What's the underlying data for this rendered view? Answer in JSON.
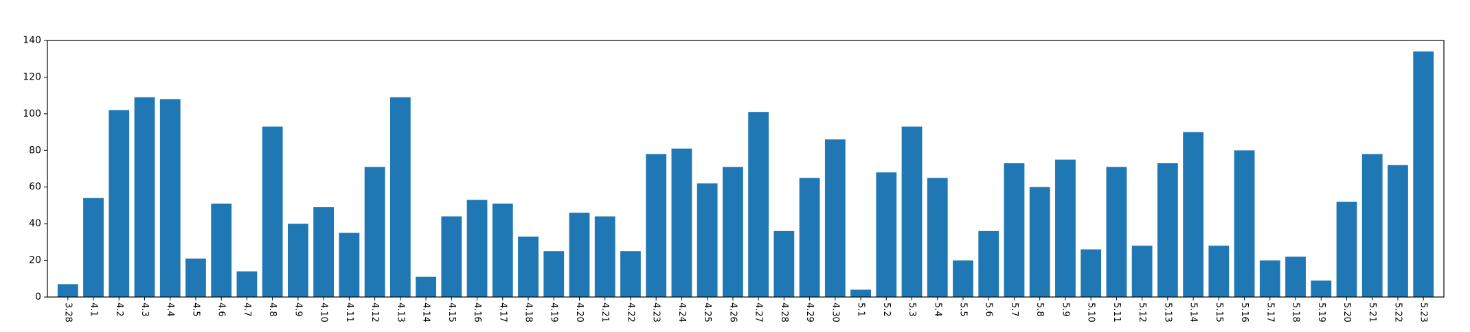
{
  "chart_data": {
    "type": "bar",
    "title": "",
    "xlabel": "",
    "ylabel": "",
    "categories": [
      "3.28",
      "4.1",
      "4.2",
      "4.3",
      "4.4",
      "4.5",
      "4.6",
      "4.7",
      "4.8",
      "4.9",
      "4.10",
      "4.11",
      "4.12",
      "4.13",
      "4.14",
      "4.15",
      "4.16",
      "4.17",
      "4.18",
      "4.19",
      "4.20",
      "4.21",
      "4.22",
      "4.23",
      "4.24",
      "4.25",
      "4.26",
      "4.27",
      "4.28",
      "4.29",
      "4.30",
      "5.1",
      "5.2",
      "5.3",
      "5.4",
      "5.5",
      "5.6",
      "5.7",
      "5.8",
      "5.9",
      "5.10",
      "5.11",
      "5.12",
      "5.13",
      "5.14",
      "5.15",
      "5.16",
      "5.17",
      "5.18",
      "5.19",
      "5.20",
      "5.21",
      "5.22",
      "5.23"
    ],
    "values": [
      7,
      54,
      102,
      109,
      108,
      21,
      51,
      14,
      93,
      40,
      49,
      35,
      71,
      109,
      11,
      44,
      53,
      51,
      33,
      25,
      46,
      44,
      25,
      78,
      81,
      62,
      71,
      101,
      36,
      65,
      86,
      4,
      68,
      93,
      65,
      20,
      36,
      73,
      60,
      75,
      26,
      71,
      28,
      73,
      90,
      28,
      80,
      20,
      22,
      9,
      52,
      78,
      72,
      134
    ],
    "ylim": [
      0,
      140
    ],
    "yticks": [
      0,
      20,
      40,
      60,
      80,
      100,
      120,
      140
    ],
    "grid": false,
    "legend": "none",
    "colors": {
      "bar": "#1f77b4",
      "axis": "#000000",
      "background": "#ffffff"
    }
  }
}
